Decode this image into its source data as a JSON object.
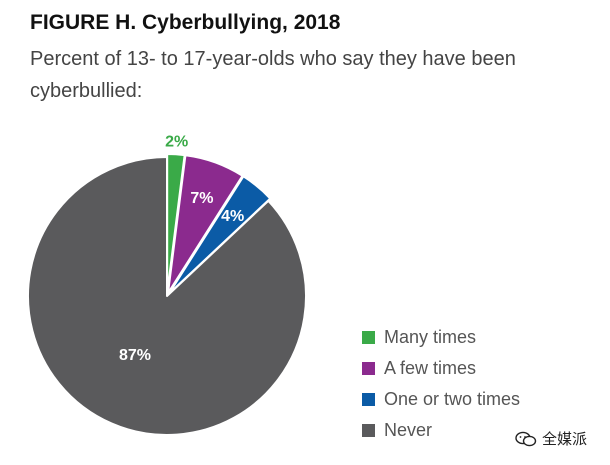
{
  "header": {
    "title": "FIGURE H. Cyberbullying, 2018",
    "subtitle": "Percent of 13- to 17-year-olds who say they have been cyberbullied:"
  },
  "chart_data": {
    "type": "pie",
    "title": "FIGURE H. Cyberbullying, 2018",
    "subtitle": "Percent of 13- to 17-year-olds who say they have been cyberbullied:",
    "legend_position": "bottom-right",
    "slices": [
      {
        "name": "Many times",
        "value": 2,
        "label": "2%",
        "color": "#3aaa48",
        "exploded": true,
        "label_placement": "outside"
      },
      {
        "name": "A few times",
        "value": 7,
        "label": "7%",
        "color": "#8b2a8e",
        "exploded": true,
        "label_placement": "inside"
      },
      {
        "name": "One or two times",
        "value": 4,
        "label": "4%",
        "color": "#0b5ba6",
        "exploded": true,
        "label_placement": "inside"
      },
      {
        "name": "Never",
        "value": 87,
        "label": "87%",
        "color": "#5a5a5c",
        "exploded": false,
        "label_placement": "inside"
      }
    ]
  },
  "watermark": {
    "text": "全媒派",
    "icon": "wechat-icon"
  }
}
